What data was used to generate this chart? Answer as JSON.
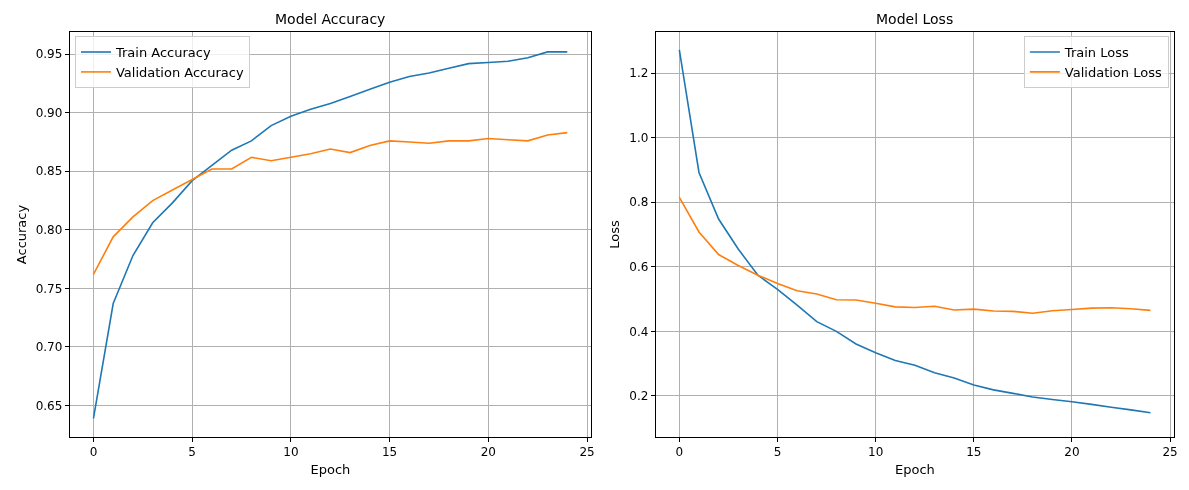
{
  "chart_data": [
    {
      "type": "line",
      "title": "Model Accuracy",
      "xlabel": "Epoch",
      "ylabel": "Accuracy",
      "x": [
        0,
        1,
        2,
        3,
        4,
        5,
        6,
        7,
        8,
        9,
        10,
        11,
        12,
        13,
        14,
        15,
        16,
        17,
        18,
        19,
        20,
        21,
        22,
        23,
        24
      ],
      "series": [
        {
          "name": "Train Accuracy",
          "color": "#1f77b4",
          "values": [
            0.639,
            0.737,
            0.778,
            0.806,
            0.823,
            0.842,
            0.855,
            0.868,
            0.876,
            0.889,
            0.897,
            0.903,
            0.908,
            0.914,
            0.92,
            0.926,
            0.931,
            0.934,
            0.938,
            0.942,
            0.943,
            0.944,
            0.947,
            0.952,
            0.952
          ]
        },
        {
          "name": "Validation Accuracy",
          "color": "#ff7f0e",
          "values": [
            0.762,
            0.794,
            0.811,
            0.825,
            0.834,
            0.843,
            0.852,
            0.852,
            0.862,
            0.859,
            0.862,
            0.865,
            0.869,
            0.866,
            0.872,
            0.876,
            0.875,
            0.874,
            0.876,
            0.876,
            0.878,
            0.877,
            0.876,
            0.881,
            0.883
          ]
        }
      ],
      "xlim": [
        -1.2,
        25.2
      ],
      "xticks": [
        0,
        5,
        10,
        15,
        20,
        25
      ],
      "ylim": [
        0.623,
        0.969
      ],
      "yticks": [
        {
          "value": 0.65,
          "label": "0.65"
        },
        {
          "value": 0.7,
          "label": "0.70"
        },
        {
          "value": 0.75,
          "label": "0.75"
        },
        {
          "value": 0.8,
          "label": "0.80"
        },
        {
          "value": 0.85,
          "label": "0.85"
        },
        {
          "value": 0.9,
          "label": "0.90"
        },
        {
          "value": 0.95,
          "label": "0.95"
        }
      ],
      "grid": true,
      "legend": "top left",
      "line_style": "solid"
    },
    {
      "type": "line",
      "title": "Model Loss",
      "xlabel": "Epoch",
      "ylabel": "Loss",
      "x": [
        0,
        1,
        2,
        3,
        4,
        5,
        6,
        7,
        8,
        9,
        10,
        11,
        12,
        13,
        14,
        15,
        16,
        17,
        18,
        19,
        20,
        21,
        22,
        23,
        24
      ],
      "series": [
        {
          "name": "Train Loss",
          "color": "#1f77b4",
          "values": [
            1.272,
            0.892,
            0.748,
            0.655,
            0.574,
            0.53,
            0.481,
            0.43,
            0.4,
            0.361,
            0.334,
            0.31,
            0.295,
            0.272,
            0.256,
            0.234,
            0.219,
            0.208,
            0.197,
            0.189,
            0.182,
            0.174,
            0.165,
            0.157,
            0.148
          ]
        },
        {
          "name": "Validation Loss",
          "color": "#ff7f0e",
          "values": [
            0.815,
            0.708,
            0.638,
            0.604,
            0.574,
            0.548,
            0.526,
            0.516,
            0.498,
            0.497,
            0.487,
            0.476,
            0.474,
            0.478,
            0.466,
            0.469,
            0.463,
            0.462,
            0.456,
            0.464,
            0.468,
            0.472,
            0.473,
            0.47,
            0.465
          ]
        }
      ],
      "xlim": [
        -1.2,
        25.2
      ],
      "xticks": [
        0,
        5,
        10,
        15,
        20,
        25
      ],
      "ylim": [
        0.073,
        1.327
      ],
      "yticks": [
        {
          "value": 0.2,
          "label": "0.2"
        },
        {
          "value": 0.4,
          "label": "0.4"
        },
        {
          "value": 0.6,
          "label": "0.6"
        },
        {
          "value": 0.8,
          "label": "0.8"
        },
        {
          "value": 1.0,
          "label": "1.0"
        },
        {
          "value": 1.2,
          "label": "1.2"
        }
      ],
      "grid": true,
      "legend": "top right",
      "line_style": "solid"
    }
  ]
}
